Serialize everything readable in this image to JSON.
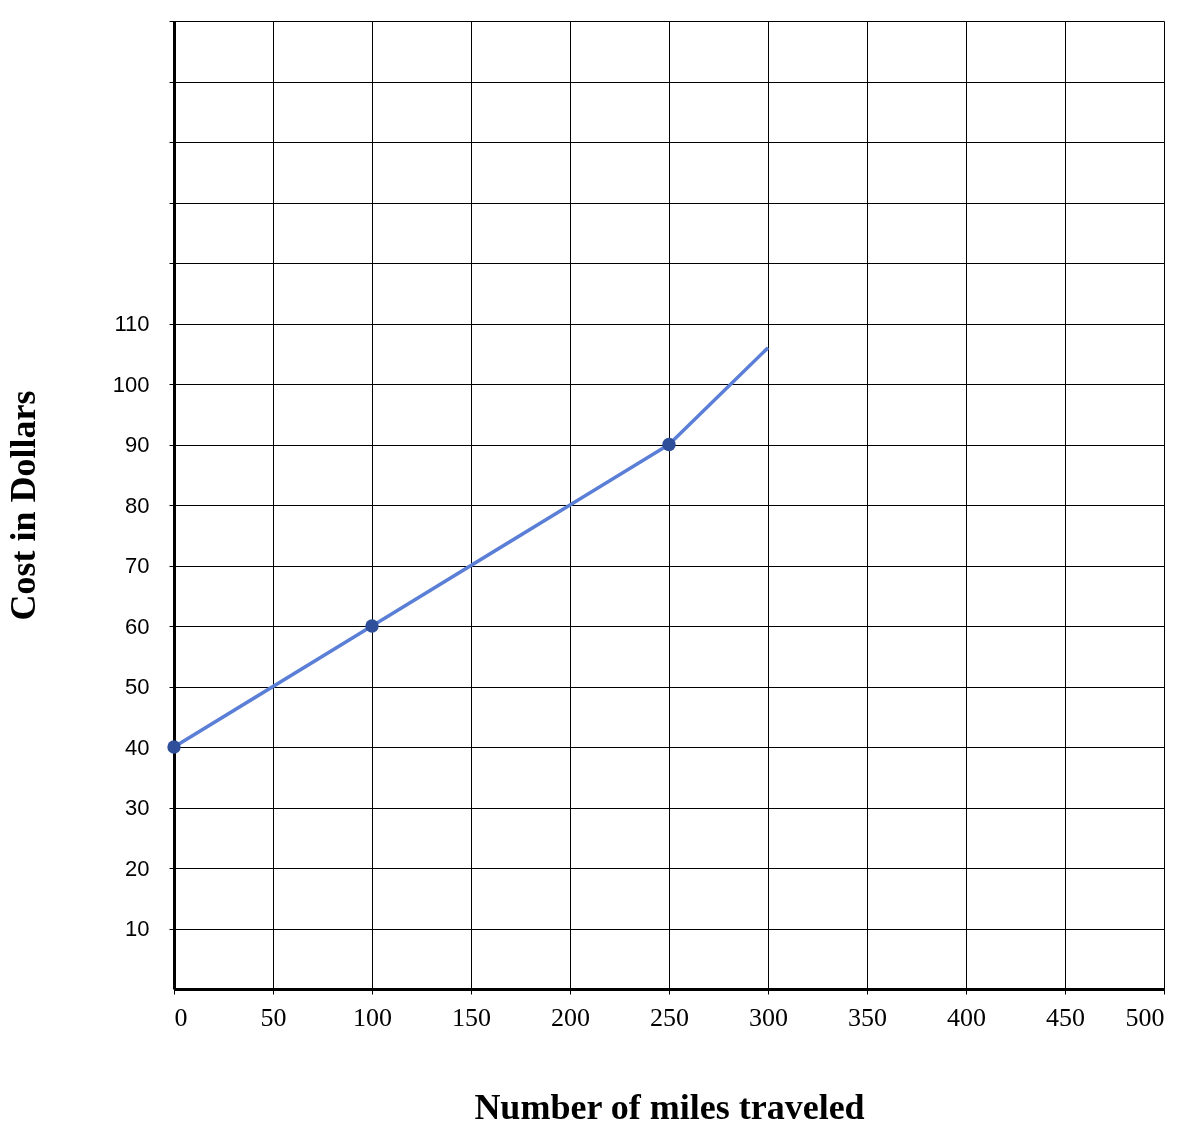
{
  "chart_data": {
    "type": "line",
    "xlabel": "Number of miles traveled",
    "ylabel": "Cost in Dollars",
    "xlim": [
      0,
      500
    ],
    "xticks": [
      0,
      50,
      100,
      150,
      200,
      250,
      300,
      350,
      400,
      450,
      500
    ],
    "ylim": [
      0,
      160
    ],
    "yticks": [
      10,
      20,
      30,
      40,
      50,
      60,
      70,
      80,
      90,
      100,
      110,
      {
        "value": 120,
        "label": null
      },
      {
        "value": 130,
        "label": null
      },
      {
        "value": 140,
        "label": null
      },
      {
        "value": 150,
        "label": null
      },
      {
        "value": 160,
        "label": null
      }
    ],
    "grid": true,
    "series": [
      {
        "color": "#5b7fd6",
        "marker": "none",
        "line_style": "solid",
        "x": [
          0,
          100,
          250,
          300
        ],
        "values": [
          40,
          60,
          90,
          106
        ]
      },
      {
        "type": "scatter",
        "color": "#2f4f9a",
        "marker": "circle",
        "x": [
          0,
          100,
          250
        ],
        "values": [
          40,
          60,
          90
        ]
      }
    ]
  }
}
